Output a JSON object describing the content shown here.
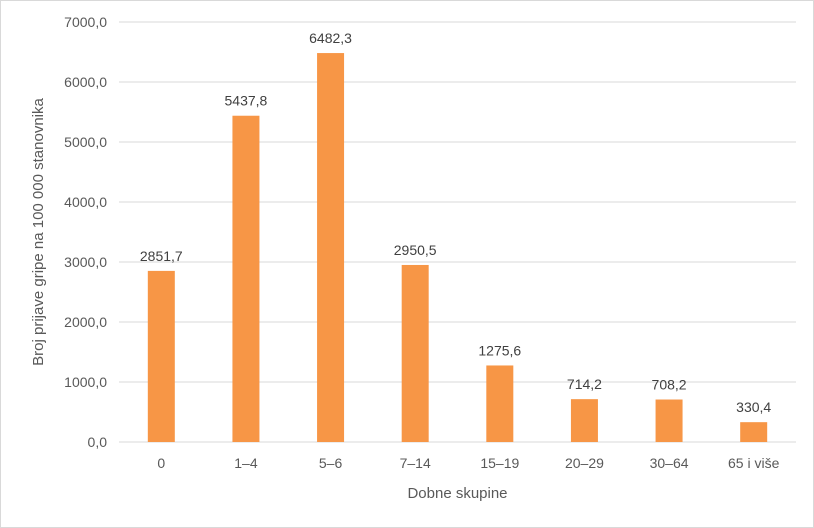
{
  "chart_data": {
    "type": "bar",
    "title": "",
    "xlabel": "Dobne skupine",
    "ylabel": "Broj prijave gripe na 100 000 stanovnika",
    "categories": [
      "0",
      "1–4",
      "5–6",
      "7–14",
      "15–19",
      "20–29",
      "30–64",
      "65 i više"
    ],
    "values": [
      2851.7,
      5437.8,
      6482.3,
      2950.5,
      1275.6,
      714.2,
      708.2,
      330.4
    ],
    "value_labels": [
      "2851,7",
      "5437,8",
      "6482,3",
      "2950,5",
      "1275,6",
      "714,2",
      "708,2",
      "330,4"
    ],
    "ylim": [
      0,
      7000
    ],
    "yticks": [
      0,
      1000,
      2000,
      3000,
      4000,
      5000,
      6000,
      7000
    ],
    "ytick_labels": [
      "0,0",
      "1000,0",
      "2000,0",
      "3000,0",
      "4000,0",
      "5000,0",
      "6000,0",
      "7000,0"
    ],
    "grid": true,
    "legend": "none",
    "bar_color": "#F79646",
    "grid_color": "#D9D9D9"
  }
}
